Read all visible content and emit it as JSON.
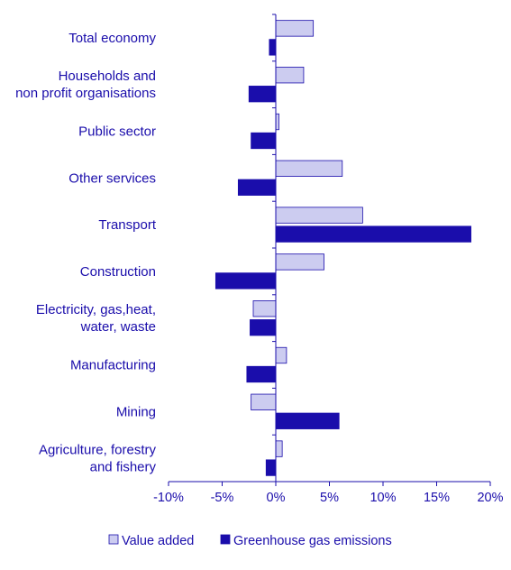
{
  "chart_data": {
    "type": "bar",
    "orientation": "horizontal",
    "title": "",
    "xlabel": "",
    "ylabel": "",
    "categories": [
      [
        "Total economy"
      ],
      [
        "Households and",
        "non profit organisations"
      ],
      [
        "Public sector"
      ],
      [
        "Other services"
      ],
      [
        "Transport"
      ],
      [
        "Construction"
      ],
      [
        "Electricity, gas,heat,",
        "water, waste"
      ],
      [
        "Manufacturing"
      ],
      [
        "Mining"
      ],
      [
        "Agriculture, forestry",
        "and fishery"
      ]
    ],
    "series": [
      {
        "name": "Value added",
        "color": "#ccccf0",
        "stroke": "#1a0dab",
        "values": [
          3.5,
          2.6,
          0.3,
          6.2,
          8.1,
          4.5,
          -2.1,
          1.0,
          -2.3,
          0.6
        ]
      },
      {
        "name": "Greenhouse gas emissions",
        "color": "#1a0dab",
        "stroke": "#1a0dab",
        "values": [
          -0.6,
          -2.5,
          -2.3,
          -3.5,
          18.2,
          -5.6,
          -2.4,
          -2.7,
          5.9,
          -0.9
        ]
      }
    ],
    "xlim": [
      -10,
      20
    ],
    "xticks": [
      -10,
      -5,
      0,
      5,
      10,
      15,
      20
    ],
    "xtick_labels": [
      "-10%",
      "-5%",
      "0%",
      "5%",
      "10%",
      "15%",
      "20%"
    ],
    "grid": false,
    "legend_position": "bottom"
  }
}
